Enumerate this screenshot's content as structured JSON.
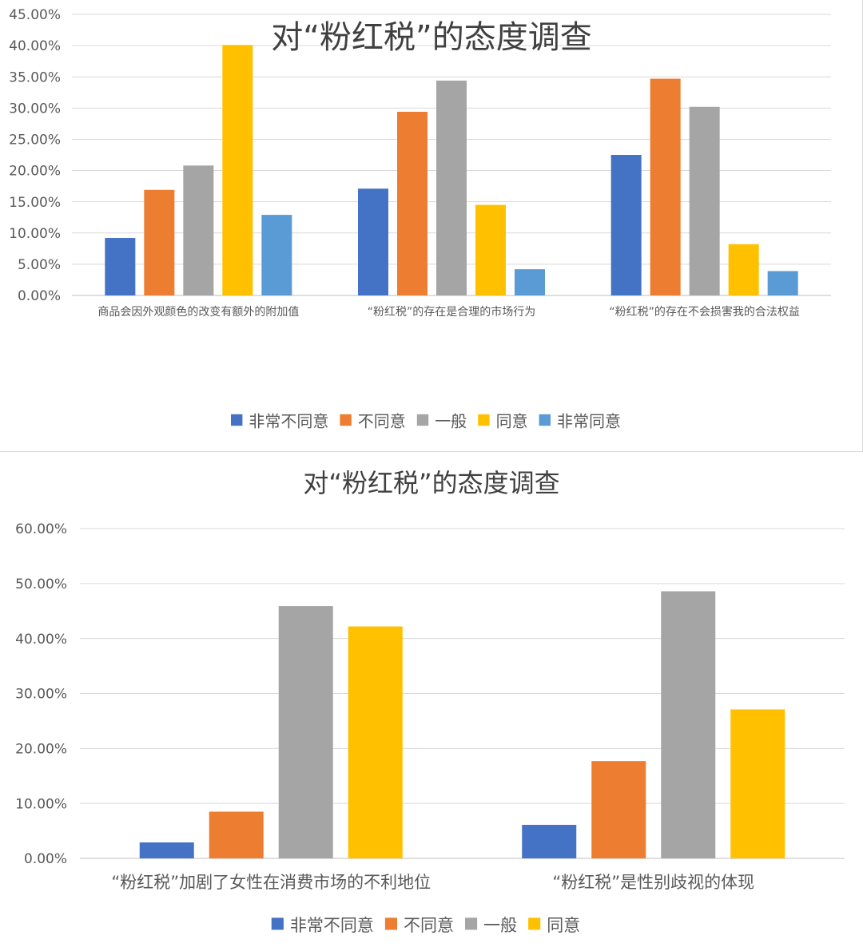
{
  "chart_data": [
    {
      "type": "bar",
      "title": "对“粉红税”的态度调查",
      "categories": [
        "商品会因外观颜色的改变有额外的附加值",
        "“粉红税”的存在是合理的市场行为",
        "“粉红税”的存在不会损害我的合法权益"
      ],
      "series": [
        {
          "name": "非常不同意",
          "color": "#4472C4",
          "values": [
            0.092,
            0.171,
            0.225
          ]
        },
        {
          "name": "不同意",
          "color": "#ED7D31",
          "values": [
            0.169,
            0.294,
            0.347
          ]
        },
        {
          "name": "一般",
          "color": "#A5A5A5",
          "values": [
            0.208,
            0.344,
            0.302
          ]
        },
        {
          "name": "同意",
          "color": "#FFC000",
          "values": [
            0.401,
            0.145,
            0.082
          ]
        },
        {
          "name": "非常同意",
          "color": "#5B9BD5",
          "values": [
            0.129,
            0.042,
            0.039
          ]
        }
      ],
      "ylim": [
        0,
        0.45
      ],
      "yticks": [
        "0.00%",
        "5.00%",
        "10.00%",
        "15.00%",
        "20.00%",
        "25.00%",
        "30.00%",
        "35.00%",
        "40.00%",
        "45.00%"
      ],
      "grid": true,
      "legend": "bottom"
    },
    {
      "type": "bar",
      "title": "对“粉红税”的态度调查",
      "categories": [
        "“粉红税”加剧了女性在消费市场的不利地位",
        "“粉红税”是性别歧视的体现"
      ],
      "series": [
        {
          "name": "非常不同意",
          "color": "#4472C4",
          "values": [
            0.029,
            0.061
          ]
        },
        {
          "name": "不同意",
          "color": "#ED7D31",
          "values": [
            0.085,
            0.177
          ]
        },
        {
          "name": "一般",
          "color": "#A5A5A5",
          "values": [
            0.459,
            0.486
          ]
        },
        {
          "name": "同意",
          "color": "#FFC000",
          "values": [
            0.422,
            0.271
          ]
        }
      ],
      "ylim": [
        0,
        0.6
      ],
      "yticks": [
        "0.00%",
        "10.00%",
        "20.00%",
        "30.00%",
        "40.00%",
        "50.00%",
        "60.00%"
      ],
      "grid": true,
      "legend": "bottom"
    }
  ]
}
